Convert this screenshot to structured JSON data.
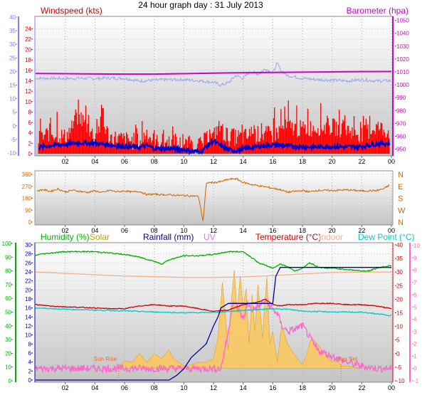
{
  "page": {
    "title": "24 hour graph day : 31 July 2013"
  },
  "colors": {
    "wind_gust": "#ff0000",
    "wind_avg": "#0000cc",
    "wind_axis": "#8080ff",
    "pressure": "#cc00cc",
    "temp_axis": "#cc0000",
    "humidity": "#00b000",
    "solar": "#e0a000",
    "rain": "#000099",
    "uv": "#ff66cc",
    "indoor": "#f0b090",
    "dewpoint": "#00cccc",
    "winddir": "#cc6600",
    "plot_bg_top": "#ffffff",
    "plot_bg_bottom": "#c8c8c8"
  },
  "chart_data": [
    {
      "type": "line",
      "id": "wind-pressure",
      "title": "",
      "legend": {
        "left": "Windspeed (kts)",
        "right": "Barometer (hpa)"
      },
      "x_ticks": [
        "02",
        "04",
        "06",
        "08",
        "10",
        "12",
        "14",
        "16",
        "18",
        "20",
        "22",
        "00"
      ],
      "y_left_outer": {
        "ticks": [
          "-10",
          "-5",
          "0",
          "5",
          "10",
          "15",
          "20",
          "25",
          "30",
          "35",
          "40"
        ],
        "range": [
          -10,
          40
        ]
      },
      "y_left_inner": {
        "ticks": [
          "0",
          "2",
          "4",
          "6",
          "8",
          "10",
          "12",
          "14",
          "16",
          "18",
          "20",
          "22",
          "24"
        ],
        "range": [
          0,
          25
        ]
      },
      "y_right": {
        "ticks": [
          "950",
          "960",
          "970",
          "980",
          "990",
          "1000",
          "1010",
          "1020",
          "1030",
          "1040",
          "1050"
        ],
        "range": [
          947,
          1052
        ]
      },
      "series": [
        {
          "name": "Windspeed (kts)",
          "axis": "left",
          "style": "gust-band",
          "x": [
            0.2,
            1,
            2,
            3,
            4,
            4.5,
            5,
            6,
            7,
            7.5,
            8,
            9,
            10,
            11,
            11.5,
            12,
            12.3,
            13,
            14,
            15,
            16,
            17,
            18,
            19,
            20,
            21,
            22,
            23,
            23.9
          ],
          "values": [
            2.5,
            4,
            3,
            7,
            3,
            6,
            3,
            2.5,
            2,
            4,
            2,
            2,
            1.5,
            1,
            2.5,
            3,
            5,
            3,
            3,
            3.5,
            3.5,
            5,
            4.5,
            5,
            5,
            4.5,
            3.5,
            5,
            4
          ],
          "peaks": [
            9,
            8,
            10,
            11,
            8,
            10,
            7,
            6,
            6,
            8,
            5,
            6,
            5,
            3,
            6,
            6,
            6,
            5,
            6,
            7,
            9,
            11,
            9,
            10,
            9,
            8,
            7,
            10,
            9
          ]
        },
        {
          "name": "",
          "axis": "left",
          "style": "thick",
          "x": [
            0.2,
            1,
            2,
            3,
            4,
            5,
            6,
            7,
            7.5,
            8,
            9,
            10,
            10.5,
            11,
            11.3,
            11.6,
            12,
            12.3,
            12.6,
            13,
            13.5,
            14,
            15,
            16,
            17,
            18,
            19,
            20,
            21,
            22,
            23,
            23.9
          ],
          "values": [
            1.2,
            1.6,
            1.8,
            2.1,
            2.0,
            1.7,
            1.4,
            1.2,
            1.6,
            1.0,
            1.0,
            0.8,
            0.5,
            0.4,
            0.8,
            1.6,
            2.5,
            1.8,
            1.4,
            0.7,
            0.6,
            0.9,
            1.4,
            1.7,
            1.5,
            1.3,
            1.3,
            1.4,
            1.3,
            1.4,
            1.9,
            2.0
          ]
        },
        {
          "name": "Barometer (hpa)",
          "axis": "right",
          "x": [
            0,
            2,
            4,
            6,
            8,
            10,
            12,
            14,
            16,
            18,
            20,
            22,
            24
          ],
          "values": [
            1008.8,
            1008.6,
            1008.4,
            1008.3,
            1008.3,
            1008.6,
            1009.0,
            1009.4,
            1009.6,
            1009.8,
            1010.0,
            1010.2,
            1010.3
          ]
        },
        {
          "name": "",
          "axis": "left_outer",
          "style": "thin",
          "x": [
            0,
            1,
            2,
            3,
            4,
            5,
            6,
            7,
            8,
            9,
            10,
            11,
            12,
            12.5,
            13,
            13.5,
            14,
            14.5,
            15,
            15.5,
            16,
            16.3,
            16.6,
            17,
            18,
            19,
            20,
            21,
            22,
            23,
            24
          ],
          "values": [
            17.5,
            17.5,
            17.4,
            17.5,
            17.4,
            17.6,
            17.5,
            16.5,
            16.8,
            17.0,
            17.0,
            16.6,
            16.0,
            15.0,
            15.8,
            18.5,
            17.5,
            20,
            19,
            21,
            19.5,
            23,
            20,
            18.5,
            17.5,
            17.0,
            16.8,
            16.5,
            17,
            16.5,
            16.6
          ]
        }
      ]
    },
    {
      "type": "line",
      "id": "wind-direction",
      "title": "",
      "x_ticks": [
        "02",
        "04",
        "06",
        "08",
        "10",
        "12",
        "14",
        "16",
        "18",
        "20",
        "22",
        "00"
      ],
      "y_left": {
        "ticks": [
          "0",
          "90",
          "180",
          "270",
          "360"
        ],
        "range": [
          0,
          360
        ]
      },
      "y_right": {
        "ticks": [
          "N",
          "W",
          "S",
          "E",
          "N"
        ]
      },
      "series": [
        {
          "name": "",
          "x": [
            0.1,
            0.5,
            1,
            1.5,
            2,
            2.5,
            3,
            3.5,
            4,
            4.5,
            5,
            5.5,
            6,
            6.5,
            7,
            7.5,
            8,
            9,
            10,
            10.5,
            10.8,
            11,
            11.3,
            11.5,
            11.6,
            12,
            12.5,
            13,
            13.5,
            14,
            14.5,
            15,
            15.5,
            16,
            16.5,
            17,
            17.5,
            18,
            18.5,
            19,
            20,
            21,
            22,
            23,
            23.5,
            23.9
          ],
          "values": [
            235,
            245,
            232,
            250,
            228,
            240,
            232,
            224,
            236,
            222,
            240,
            228,
            236,
            226,
            232,
            208,
            210,
            205,
            200,
            198,
            196,
            190,
            0,
            280,
            298,
            298,
            305,
            322,
            328,
            300,
            285,
            275,
            265,
            256,
            245,
            225,
            232,
            238,
            228,
            240,
            238,
            243,
            235,
            238,
            252,
            282
          ]
        }
      ]
    },
    {
      "type": "line",
      "id": "temp-humidity-rain-solar",
      "title": "",
      "legend": [
        "Humidity (%)",
        "Solar",
        "Rainfall (mm)",
        "UV",
        "Temperature (°C)",
        "Indoor",
        "Dew Point (°C)"
      ],
      "annotations": [
        "Sun Rise",
        "Sun Set"
      ],
      "x_ticks": [
        "02",
        "04",
        "06",
        "08",
        "10",
        "12",
        "14",
        "16",
        "18",
        "20",
        "22",
        "00"
      ],
      "y_humidity": {
        "ticks": [
          "0",
          "10",
          "20",
          "30",
          "40",
          "50",
          "60",
          "70",
          "80",
          "90",
          "100"
        ],
        "range": [
          0,
          100
        ]
      },
      "y_rain": {
        "ticks": [
          "0",
          "2",
          "4",
          "6",
          "8",
          "10",
          "12",
          "14",
          "16",
          "18",
          "20",
          "22",
          "24",
          "26",
          "28",
          "30"
        ],
        "range": [
          0,
          30
        ]
      },
      "y_temp": {
        "ticks": [
          "-10",
          "-5",
          "0",
          "5",
          "10",
          "15",
          "20",
          "25",
          "30",
          "35",
          "40"
        ],
        "range": [
          -10,
          40
        ]
      },
      "y_uv": {
        "ticks": [
          "-1",
          "0",
          "1",
          "2",
          "3",
          "4",
          "5",
          "6",
          "7",
          "8",
          "9",
          "10"
        ],
        "range": [
          -1,
          10
        ]
      },
      "series": [
        {
          "name": "Humidity (%)",
          "axis": "humidity",
          "x": [
            0,
            0.2,
            1,
            2,
            3,
            4,
            5,
            6,
            7,
            8,
            8.5,
            9,
            10,
            11,
            12,
            13,
            14,
            14.8,
            15,
            15.5,
            16,
            16.5,
            17,
            17.5,
            18,
            18.5,
            19,
            19.5,
            20,
            21,
            22,
            22.5,
            23,
            23.5,
            24
          ],
          "values": [
            91,
            92,
            93,
            94,
            94,
            94,
            93,
            92,
            90,
            87,
            85,
            88,
            91,
            91,
            92,
            94,
            94,
            88,
            86,
            84,
            82,
            85,
            83,
            80,
            82,
            86,
            83,
            82,
            82,
            81,
            80,
            80,
            82,
            83,
            84
          ]
        },
        {
          "name": "Rainfall (mm)",
          "axis": "rain",
          "x": [
            0,
            9,
            9.5,
            10,
            10.5,
            11,
            11.5,
            12,
            12.3,
            12.5,
            13,
            14,
            14.5,
            15,
            15.5,
            16,
            16.2,
            16.5,
            17,
            18,
            20,
            22,
            24
          ],
          "values": [
            0,
            0,
            1,
            2.5,
            5,
            6.5,
            8,
            12,
            14,
            16,
            17,
            17,
            17,
            17,
            17,
            17,
            23,
            25,
            25,
            25,
            25,
            25,
            25
          ]
        },
        {
          "name": "Temperature (°C)",
          "axis": "temp",
          "x": [
            0,
            1,
            2,
            3,
            4,
            5,
            6,
            7,
            8,
            9,
            10,
            11,
            12,
            13,
            14,
            15,
            15.5,
            16,
            16.5,
            17,
            18,
            19,
            20,
            21,
            22,
            23,
            24
          ],
          "values": [
            18,
            17.5,
            17.2,
            17,
            16.8,
            16.5,
            16.5,
            17.5,
            18,
            17.5,
            17.5,
            16.5,
            15.5,
            16,
            18,
            19,
            20,
            18,
            17.5,
            18,
            18,
            18.5,
            18.5,
            18,
            18,
            17.5,
            16.5
          ]
        },
        {
          "name": "Dew Point (°C)",
          "axis": "temp",
          "x": [
            0,
            2,
            4,
            6,
            8,
            10,
            12,
            14,
            16,
            17,
            18,
            20,
            22,
            24
          ],
          "values": [
            16.8,
            16.3,
            16.0,
            15.7,
            15.3,
            15,
            15.1,
            15.9,
            16.5,
            16.3,
            15.6,
            15.3,
            15.2,
            14
          ]
        },
        {
          "name": "Indoor",
          "axis": "temp",
          "x": [
            0,
            2,
            4,
            6,
            8,
            10,
            12,
            14,
            16,
            18,
            20,
            22,
            24
          ],
          "values": [
            30,
            29.5,
            29,
            28.5,
            28.3,
            28,
            28,
            28.2,
            28.7,
            29.3,
            29.8,
            30,
            30
          ]
        },
        {
          "name": "Solar",
          "axis": "uv",
          "style": "area",
          "x": [
            0,
            5.6,
            6,
            6.5,
            7,
            7.5,
            8,
            8.5,
            9,
            9.3,
            10,
            10.5,
            11,
            11.5,
            12,
            12.3,
            12.6,
            13,
            13.2,
            13.4,
            13.6,
            13.8,
            14,
            14.2,
            14.4,
            14.6,
            14.8,
            15,
            15.3,
            15.6,
            15.8,
            16,
            16.3,
            16.6,
            17,
            17.5,
            18,
            18.3,
            18.6,
            19,
            19.3,
            19.6,
            20,
            20.3,
            20.6,
            21,
            22,
            24
          ],
          "values": [
            0,
            0,
            0.6,
            0.5,
            1.2,
            0.5,
            1.2,
            0.8,
            1.5,
            0.8,
            0.2,
            0.3,
            0.5,
            0.5,
            0.8,
            2.5,
            7.0,
            1.5,
            5.5,
            8.0,
            4.5,
            7.5,
            5.0,
            6.5,
            2.0,
            6.0,
            3.0,
            6.8,
            2.5,
            7.5,
            2.0,
            3.0,
            0.5,
            3.5,
            2.0,
            1.0,
            0.3,
            1.2,
            2.5,
            2.0,
            1.5,
            1.0,
            0.5,
            0.8,
            0.2,
            0.2,
            0,
            0
          ]
        },
        {
          "name": "UV",
          "axis": "uv",
          "x": [
            0,
            12.5,
            13,
            13.3,
            13.6,
            14,
            14.3,
            14.6,
            15,
            15.5,
            16,
            16.3,
            16.6,
            17,
            17.5,
            18,
            18.5,
            19,
            20,
            21,
            22,
            23,
            24
          ],
          "values": [
            0,
            0,
            3,
            5.5,
            5,
            4,
            5.3,
            4.8,
            5,
            5.5,
            4.8,
            4.5,
            3.5,
            3.0,
            3.2,
            3.5,
            2.5,
            1.5,
            1,
            0.5,
            0.2,
            0,
            0
          ]
        }
      ]
    }
  ]
}
